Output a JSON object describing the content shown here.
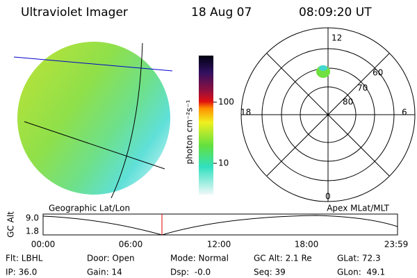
{
  "header": {
    "title": "Ultraviolet Imager",
    "date": "18 Aug 07",
    "time": "08:09:20 UT"
  },
  "colorbar": {
    "label": "photon cm⁻²s⁻¹",
    "ticks": [
      "100",
      "10"
    ]
  },
  "polar": {
    "labels": [
      "12",
      "6",
      "0",
      "18"
    ],
    "rings": [
      "60",
      "70",
      "80"
    ]
  },
  "timeline": {
    "left_title": "Geographic Lat/Lon",
    "right_title": "Apex MLat/MLT",
    "ylabel": "GC Alt",
    "yticks": [
      "9.0",
      "1.8"
    ],
    "xticks": [
      "00:00",
      "06:00",
      "12:00",
      "18:00",
      "23:59"
    ]
  },
  "status": [
    [
      "Flt: LBHL",
      "Door: Open",
      "Mode: Normal",
      "GC Alt: 2.1 Re",
      "GLat: 72.3"
    ],
    [
      "IP: 36.0",
      "Gain: 14",
      "Dsp:  -0.0",
      "Seq: 39",
      "GLon:  49.1"
    ]
  ]
}
